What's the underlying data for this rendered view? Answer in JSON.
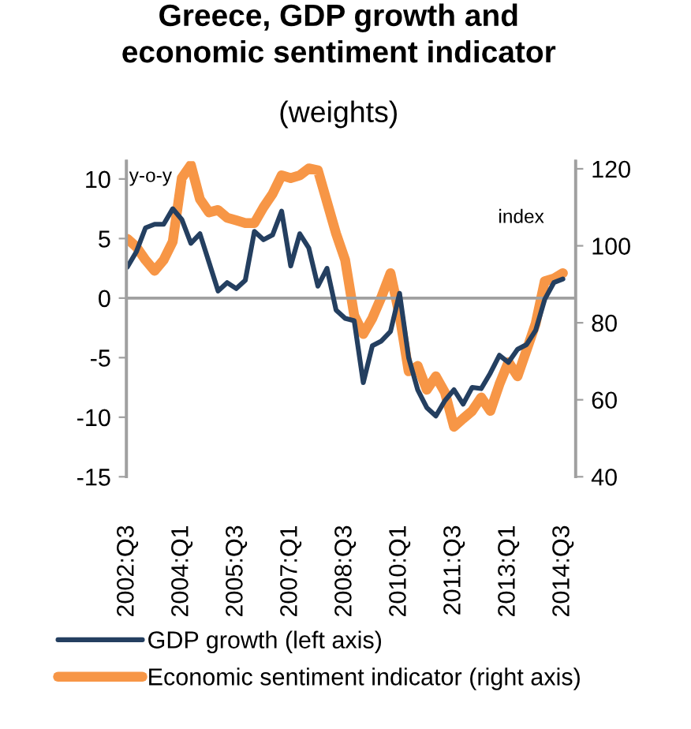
{
  "chart_data": {
    "type": "line",
    "title": "Greece, GDP growth and\neconomic sentiment indicator",
    "subtitle": "(weights)",
    "categories": [
      "2002:Q3",
      null,
      null,
      null,
      null,
      null,
      "2004:Q1",
      null,
      null,
      null,
      null,
      null,
      "2005:Q3",
      null,
      null,
      null,
      null,
      null,
      "2007:Q1",
      null,
      null,
      null,
      null,
      null,
      "2008:Q3",
      null,
      null,
      null,
      null,
      null,
      "2010:Q1",
      null,
      null,
      null,
      null,
      null,
      "2011:Q3",
      null,
      null,
      null,
      null,
      null,
      "2013:Q1",
      null,
      null,
      null,
      null,
      null,
      "2014:Q3"
    ],
    "series": [
      {
        "name": "GDP growth (left axis)",
        "color": "#243f60",
        "values": [
          2.6,
          3.9,
          5.9,
          6.2,
          6.2,
          7.5,
          6.6,
          4.6,
          5.4,
          3.0,
          0.6,
          1.3,
          0.8,
          1.5,
          5.6,
          4.9,
          5.3,
          7.3,
          2.7,
          5.4,
          4.2,
          1.0,
          2.5,
          -1.0,
          -1.7,
          -1.9,
          -7.1,
          -4.0,
          -3.6,
          -2.8,
          0.4,
          -5.0,
          -7.7,
          -9.2,
          -9.9,
          -8.6,
          -7.7,
          -8.9,
          -7.5,
          -7.6,
          -6.3,
          -4.8,
          -5.4,
          -4.3,
          -3.9,
          -2.7,
          -0.1,
          1.3,
          1.6
        ]
      },
      {
        "name": "Economic sentiment indicator (right axis)",
        "color": "#f79646",
        "axis": "y2",
        "values": [
          101.8,
          99.7,
          96.3,
          93.5,
          96.3,
          101.1,
          117.6,
          121.0,
          112.1,
          108.7,
          109.3,
          107.3,
          106.6,
          105.9,
          105.9,
          110.0,
          113.5,
          118.3,
          117.6,
          118.3,
          120.1,
          119.6,
          111.4,
          103.2,
          96.3,
          81.9,
          77.1,
          81.2,
          86.7,
          92.9,
          81.9,
          67.4,
          68.8,
          62.6,
          66.1,
          61.9,
          53.0,
          55.1,
          57.1,
          60.6,
          57.1,
          64.0,
          69.8,
          66.1,
          72.9,
          79.8,
          90.8,
          91.5,
          92.9
        ]
      }
    ],
    "ylim": [
      -15,
      11.5
    ],
    "yticks": [
      -15,
      -10,
      -5,
      0,
      5,
      10
    ],
    "y2lim": [
      40,
      122
    ],
    "y2ticks": [
      40,
      60,
      80,
      100,
      120
    ],
    "ref_lines": [
      {
        "axis": "y",
        "value": 0,
        "color": "#a0a0a0"
      }
    ],
    "annotations": [
      "y-o-y",
      "index"
    ],
    "grid": false,
    "legend": "bottom",
    "marker": "none",
    "line_style": "solid"
  }
}
